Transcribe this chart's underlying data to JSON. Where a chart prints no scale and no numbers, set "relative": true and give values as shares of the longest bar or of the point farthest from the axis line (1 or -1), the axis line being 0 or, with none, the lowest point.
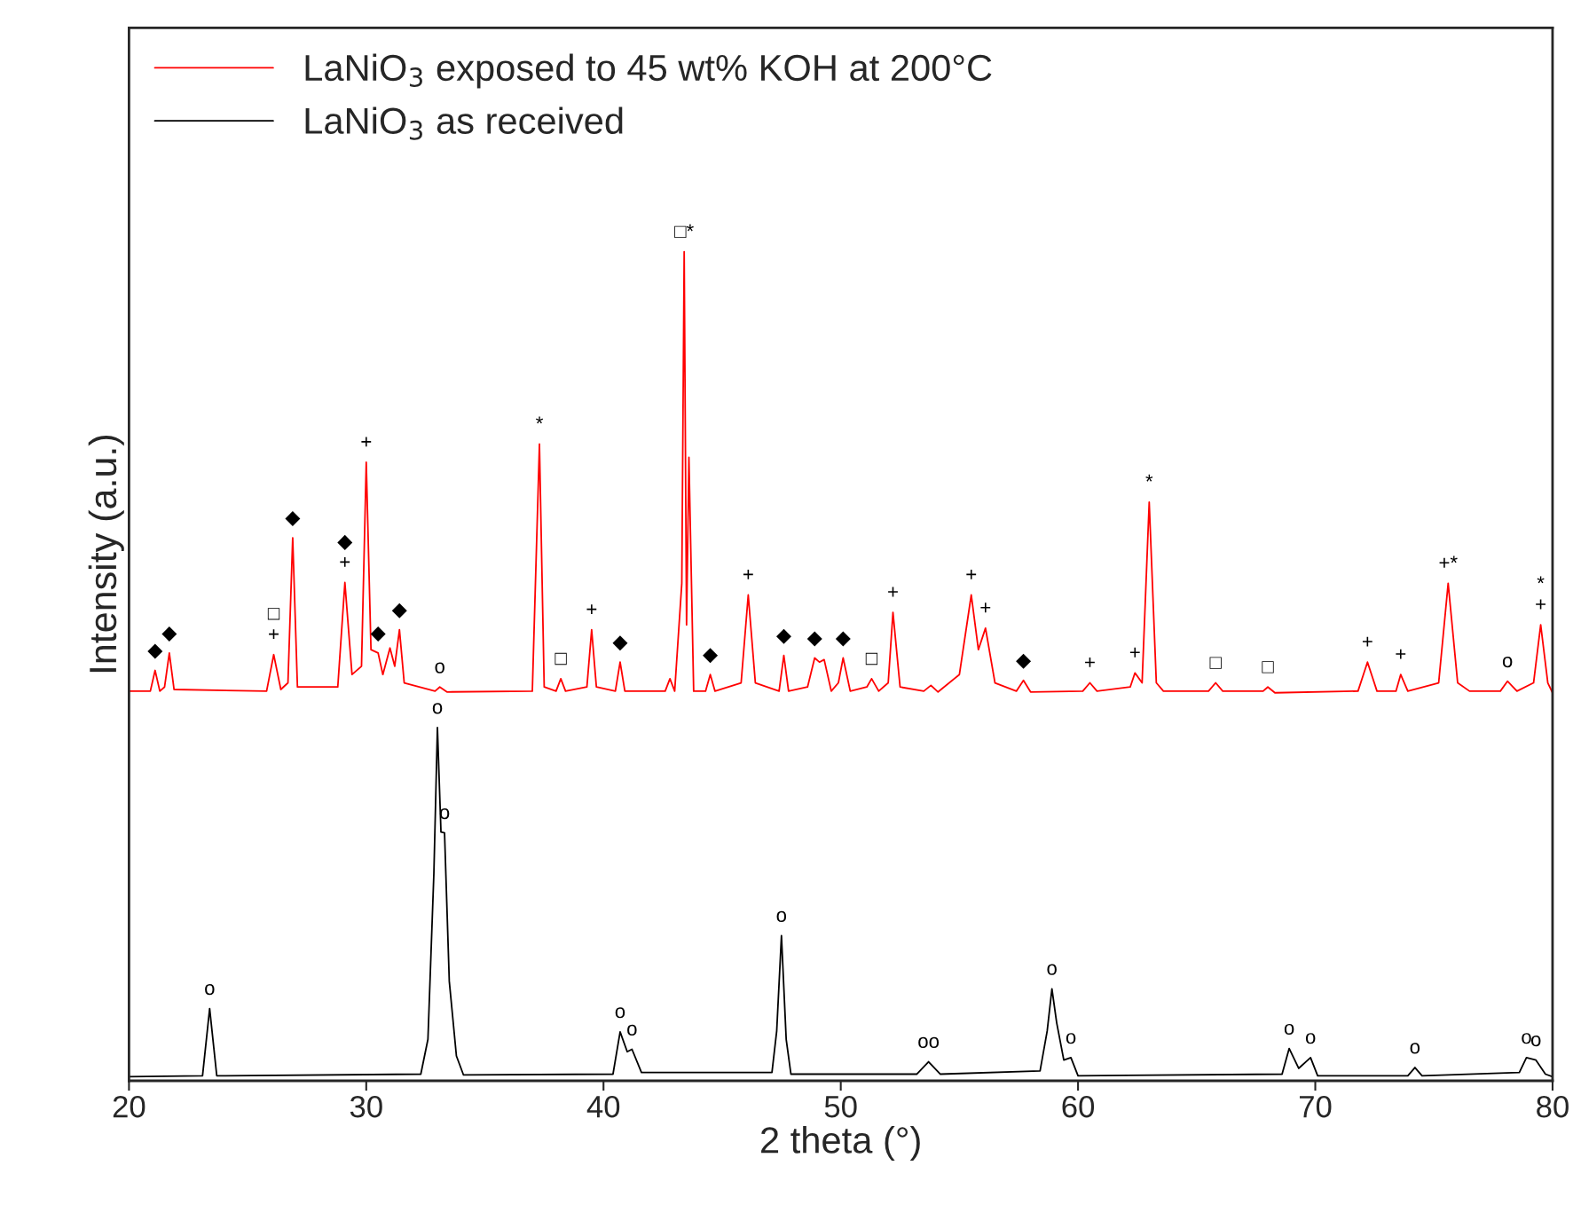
{
  "chart_data": {
    "type": "line",
    "relative": true,
    "xlabel": "2 theta (°)",
    "ylabel": "Intensity (a.u.)",
    "xlim": [
      20,
      80
    ],
    "xticks": [
      20,
      30,
      40,
      50,
      60,
      70,
      80
    ],
    "legend": "top left",
    "grid": false,
    "marker": "none",
    "line_style": "solid",
    "series": [
      {
        "name": "LaNiO$_{3}$ exposed to 45 wt% KOH at 200°C",
        "color": "#ff0000",
        "x": [
          20.0,
          20.9,
          21.1,
          21.3,
          21.5,
          21.7,
          21.9,
          25.8,
          26.1,
          26.4,
          26.7,
          26.9,
          27.1,
          28.8,
          29.1,
          29.4,
          29.8,
          30.0,
          30.2,
          30.5,
          30.7,
          31.0,
          31.2,
          31.4,
          31.6,
          32.9,
          33.1,
          33.4,
          37.0,
          37.3,
          37.5,
          38.0,
          38.2,
          38.4,
          39.3,
          39.5,
          39.7,
          40.5,
          40.7,
          40.9,
          42.6,
          42.8,
          43.0,
          43.3,
          43.4,
          43.5,
          43.6,
          43.8,
          44.3,
          44.5,
          44.7,
          45.8,
          46.1,
          46.4,
          47.4,
          47.6,
          47.8,
          48.6,
          48.9,
          49.1,
          49.3,
          49.6,
          49.9,
          50.1,
          50.4,
          51.1,
          51.3,
          51.6,
          52.0,
          52.2,
          52.5,
          53.5,
          53.8,
          54.1,
          55.0,
          55.5,
          55.8,
          56.1,
          56.5,
          57.4,
          57.7,
          58.0,
          60.2,
          60.5,
          60.8,
          62.2,
          62.4,
          62.7,
          63.0,
          63.3,
          63.6,
          65.5,
          65.8,
          66.1,
          67.8,
          68.0,
          68.3,
          71.8,
          72.2,
          72.6,
          73.4,
          73.6,
          73.9,
          75.2,
          75.6,
          76.0,
          76.5,
          77.8,
          78.1,
          78.5,
          79.2,
          79.5,
          79.8,
          80.0
        ],
        "values": [
          0.47,
          0.47,
          0.495,
          0.47,
          0.475,
          0.516,
          0.472,
          0.47,
          0.514,
          0.472,
          0.48,
          0.655,
          0.475,
          0.475,
          0.601,
          0.49,
          0.5,
          0.746,
          0.52,
          0.516,
          0.49,
          0.522,
          0.5,
          0.544,
          0.48,
          0.47,
          0.475,
          0.469,
          0.47,
          0.768,
          0.475,
          0.47,
          0.485,
          0.47,
          0.475,
          0.544,
          0.475,
          0.47,
          0.505,
          0.47,
          0.47,
          0.485,
          0.47,
          0.6,
          1.0,
          0.55,
          0.752,
          0.47,
          0.47,
          0.49,
          0.47,
          0.48,
          0.586,
          0.48,
          0.47,
          0.513,
          0.47,
          0.475,
          0.51,
          0.505,
          0.508,
          0.47,
          0.48,
          0.51,
          0.47,
          0.475,
          0.485,
          0.47,
          0.48,
          0.565,
          0.475,
          0.47,
          0.477,
          0.469,
          0.49,
          0.586,
          0.52,
          0.546,
          0.48,
          0.47,
          0.483,
          0.469,
          0.47,
          0.48,
          0.47,
          0.475,
          0.492,
          0.48,
          0.698,
          0.48,
          0.47,
          0.47,
          0.48,
          0.47,
          0.47,
          0.475,
          0.468,
          0.47,
          0.505,
          0.47,
          0.47,
          0.49,
          0.47,
          0.48,
          0.6,
          0.48,
          0.47,
          0.47,
          0.482,
          0.47,
          0.48,
          0.55,
          0.48,
          0.468
        ]
      },
      {
        "name": "LaNiO$_{3}$ as received",
        "color": "#000000",
        "x": [
          20,
          23.1,
          23.4,
          23.7,
          32.3,
          32.6,
          32.85,
          33.0,
          33.15,
          33.3,
          33.5,
          33.8,
          34.1,
          40.4,
          40.7,
          41.0,
          41.2,
          41.6,
          47.1,
          47.3,
          47.5,
          47.7,
          47.9,
          53.2,
          53.7,
          54.2,
          58.4,
          58.7,
          58.9,
          59.1,
          59.4,
          59.7,
          60.0,
          68.6,
          68.9,
          69.3,
          69.8,
          70.1,
          73.9,
          74.2,
          74.5,
          78.6,
          78.9,
          79.3,
          79.7,
          80
        ],
        "values": [
          0.005,
          0.006,
          0.087,
          0.006,
          0.008,
          0.05,
          0.25,
          0.426,
          0.3,
          0.299,
          0.12,
          0.03,
          0.007,
          0.008,
          0.059,
          0.035,
          0.038,
          0.01,
          0.01,
          0.06,
          0.175,
          0.05,
          0.008,
          0.008,
          0.023,
          0.008,
          0.012,
          0.06,
          0.111,
          0.07,
          0.025,
          0.028,
          0.006,
          0.008,
          0.039,
          0.015,
          0.028,
          0.006,
          0.006,
          0.016,
          0.006,
          0.01,
          0.028,
          0.025,
          0.008,
          0.005
        ]
      }
    ],
    "annotations": [
      {
        "text": "◆",
        "x": 21.1,
        "y": 0.495
      },
      {
        "text": "◆",
        "x": 21.7,
        "y": 0.516
      },
      {
        "text": "+",
        "x": 26.1,
        "y": 0.514
      },
      {
        "text": "□",
        "x": 26.1,
        "y": 0.514
      },
      {
        "text": "◆",
        "x": 26.9,
        "y": 0.655
      },
      {
        "text": "+",
        "x": 29.1,
        "y": 0.601
      },
      {
        "text": "◆",
        "x": 29.1,
        "y": 0.601
      },
      {
        "text": "+",
        "x": 30.0,
        "y": 0.746
      },
      {
        "text": "◆",
        "x": 30.5,
        "y": 0.516
      },
      {
        "text": "◆",
        "x": 31.4,
        "y": 0.544
      },
      {
        "text": "o",
        "x": 33.1,
        "y": 0.475
      },
      {
        "text": "*",
        "x": 37.3,
        "y": 0.768
      },
      {
        "text": "□",
        "x": 38.2,
        "y": 0.485
      },
      {
        "text": "+",
        "x": 39.5,
        "y": 0.544
      },
      {
        "text": "◆",
        "x": 40.7,
        "y": 0.505
      },
      {
        "text": "□*",
        "x": 43.4,
        "y": 1.0
      },
      {
        "text": "◆",
        "x": 44.5,
        "y": 0.49
      },
      {
        "text": "+",
        "x": 46.1,
        "y": 0.586
      },
      {
        "text": "◆",
        "x": 47.6,
        "y": 0.513
      },
      {
        "text": "◆",
        "x": 48.9,
        "y": 0.51
      },
      {
        "text": "◆",
        "x": 50.1,
        "y": 0.51
      },
      {
        "text": "□",
        "x": 51.3,
        "y": 0.485
      },
      {
        "text": "+",
        "x": 52.2,
        "y": 0.565
      },
      {
        "text": "+",
        "x": 55.5,
        "y": 0.586
      },
      {
        "text": "+",
        "x": 56.1,
        "y": 0.546
      },
      {
        "text": "◆",
        "x": 57.7,
        "y": 0.483
      },
      {
        "text": "+",
        "x": 60.5,
        "y": 0.48
      },
      {
        "text": "+",
        "x": 62.4,
        "y": 0.492
      },
      {
        "text": "*",
        "x": 63.0,
        "y": 0.698
      },
      {
        "text": "□",
        "x": 65.8,
        "y": 0.48
      },
      {
        "text": "□",
        "x": 68.0,
        "y": 0.475
      },
      {
        "text": "+",
        "x": 72.2,
        "y": 0.505
      },
      {
        "text": "+",
        "x": 73.6,
        "y": 0.49
      },
      {
        "text": "+*",
        "x": 75.6,
        "y": 0.6
      },
      {
        "text": "o",
        "x": 78.1,
        "y": 0.482
      },
      {
        "text": "+",
        "x": 79.5,
        "y": 0.55
      },
      {
        "text": "*",
        "x": 79.5,
        "y": 0.55
      },
      {
        "text": "o",
        "x": 23.4,
        "y": 0.087
      },
      {
        "text": "o",
        "x": 33.0,
        "y": 0.426
      },
      {
        "text": "o",
        "x": 33.3,
        "y": 0.299
      },
      {
        "text": "o",
        "x": 40.7,
        "y": 0.059
      },
      {
        "text": "o",
        "x": 41.2,
        "y": 0.038
      },
      {
        "text": "o",
        "x": 47.5,
        "y": 0.175
      },
      {
        "text": "oo",
        "x": 53.7,
        "y": 0.023
      },
      {
        "text": "o",
        "x": 58.9,
        "y": 0.111
      },
      {
        "text": "o",
        "x": 59.7,
        "y": 0.028
      },
      {
        "text": "o",
        "x": 68.9,
        "y": 0.039
      },
      {
        "text": "o",
        "x": 69.8,
        "y": 0.028
      },
      {
        "text": "o",
        "x": 74.2,
        "y": 0.016
      },
      {
        "text": "o",
        "x": 78.9,
        "y": 0.028
      },
      {
        "text": "o",
        "x": 79.3,
        "y": 0.025
      }
    ]
  }
}
